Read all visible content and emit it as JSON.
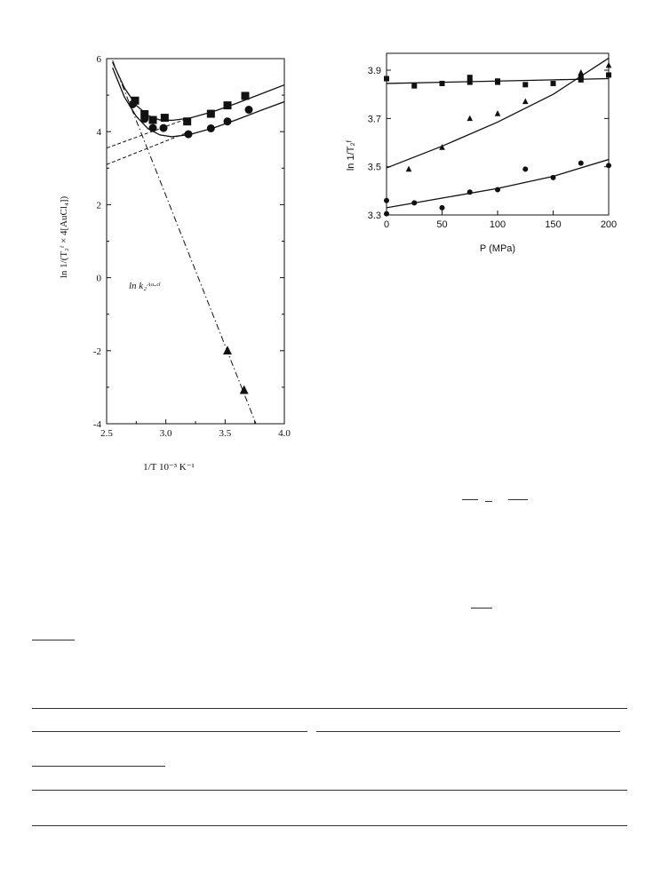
{
  "chart_data": [
    {
      "type": "scatter",
      "title": "",
      "xlabel": "1/T 10⁻³ K⁻¹",
      "ylabel": "ln 1/(T₂ᶠ × 4[AuCl₄])",
      "xlim": [
        2.5,
        4.0
      ],
      "ylim": [
        -4,
        6
      ],
      "xticks": [
        "2.5",
        "3.0",
        "3.5",
        "4.0"
      ],
      "yticks": [
        "-4",
        "-2",
        "0",
        "2",
        "4",
        "6"
      ],
      "annotation": "ln k₂ᴬᵘ·ᶜˡ",
      "grid": false,
      "series": [
        {
          "name": "",
          "marker": "square",
          "x": [
            2.74,
            2.82,
            2.89,
            2.99,
            3.18,
            3.38,
            3.52,
            3.67
          ],
          "y": [
            4.85,
            4.48,
            4.32,
            4.38,
            4.28,
            4.49,
            4.72,
            4.98
          ]
        },
        {
          "name": "",
          "marker": "circle",
          "x": [
            2.72,
            2.82,
            2.89,
            2.98,
            3.19,
            3.38,
            3.52,
            3.7
          ],
          "y": [
            4.75,
            4.35,
            4.1,
            4.1,
            3.93,
            4.09,
            4.28,
            4.6
          ]
        },
        {
          "name": "",
          "marker": "triangle",
          "x": [
            3.52,
            3.66
          ],
          "y": [
            -2.0,
            -3.08
          ]
        }
      ],
      "lines": [
        {
          "style": "solid",
          "x": [
            2.55,
            2.65,
            2.75,
            2.85,
            2.95,
            3.05,
            3.2,
            3.4,
            3.6,
            3.8,
            4.0
          ],
          "y": [
            5.9,
            5.2,
            4.72,
            4.44,
            4.32,
            4.31,
            4.37,
            4.55,
            4.78,
            5.03,
            5.28
          ]
        },
        {
          "style": "solid",
          "x": [
            2.55,
            2.65,
            2.75,
            2.85,
            2.95,
            3.05,
            3.2,
            3.4,
            3.6,
            3.8,
            4.0
          ],
          "y": [
            5.75,
            4.95,
            4.42,
            4.08,
            3.91,
            3.86,
            3.92,
            4.1,
            4.33,
            4.58,
            4.82
          ]
        },
        {
          "style": "dashed",
          "x": [
            2.5,
            3.2
          ],
          "y": [
            3.55,
            4.38
          ]
        },
        {
          "style": "dashed",
          "x": [
            2.5,
            3.2
          ],
          "y": [
            3.1,
            4.0
          ]
        },
        {
          "style": "dash-dot",
          "x": [
            2.55,
            3.76
          ],
          "y": [
            5.95,
            -4.0
          ]
        }
      ]
    },
    {
      "type": "scatter",
      "title": "",
      "xlabel": "P (MPa)",
      "ylabel": "ln 1/T₂ᶠ",
      "xlim": [
        0,
        200
      ],
      "ylim": [
        3.3,
        3.97
      ],
      "xticks": [
        "0",
        "50",
        "100",
        "150",
        "200"
      ],
      "yticks": [
        "3.3",
        "3.5",
        "3.7",
        "3.9"
      ],
      "grid": false,
      "series": [
        {
          "name": "",
          "marker": "square",
          "x": [
            0,
            25,
            50,
            75,
            75,
            100,
            100,
            125,
            150,
            175,
            175,
            200
          ],
          "y": [
            3.865,
            3.835,
            3.845,
            3.87,
            3.85,
            3.855,
            3.85,
            3.84,
            3.845,
            3.87,
            3.86,
            3.88
          ]
        },
        {
          "name": "",
          "marker": "triangle",
          "x": [
            20,
            50,
            75,
            100,
            125,
            175,
            200
          ],
          "y": [
            3.49,
            3.58,
            3.7,
            3.72,
            3.77,
            3.89,
            3.92
          ]
        },
        {
          "name": "",
          "marker": "circle",
          "x": [
            0,
            0,
            25,
            50,
            75,
            100,
            125,
            150,
            175,
            200
          ],
          "y": [
            3.36,
            3.305,
            3.35,
            3.33,
            3.395,
            3.405,
            3.49,
            3.455,
            3.515,
            3.505
          ]
        }
      ],
      "lines": [
        {
          "style": "solid",
          "x": [
            0,
            50,
            100,
            150,
            200
          ],
          "y": [
            3.845,
            3.85,
            3.855,
            3.86,
            3.865
          ]
        },
        {
          "style": "solid",
          "x": [
            0,
            50,
            100,
            150,
            200
          ],
          "y": [
            3.495,
            3.585,
            3.685,
            3.8,
            3.95
          ]
        },
        {
          "style": "solid",
          "x": [
            0,
            50,
            100,
            150,
            200
          ],
          "y": [
            3.33,
            3.37,
            3.41,
            3.46,
            3.53
          ]
        }
      ]
    }
  ]
}
